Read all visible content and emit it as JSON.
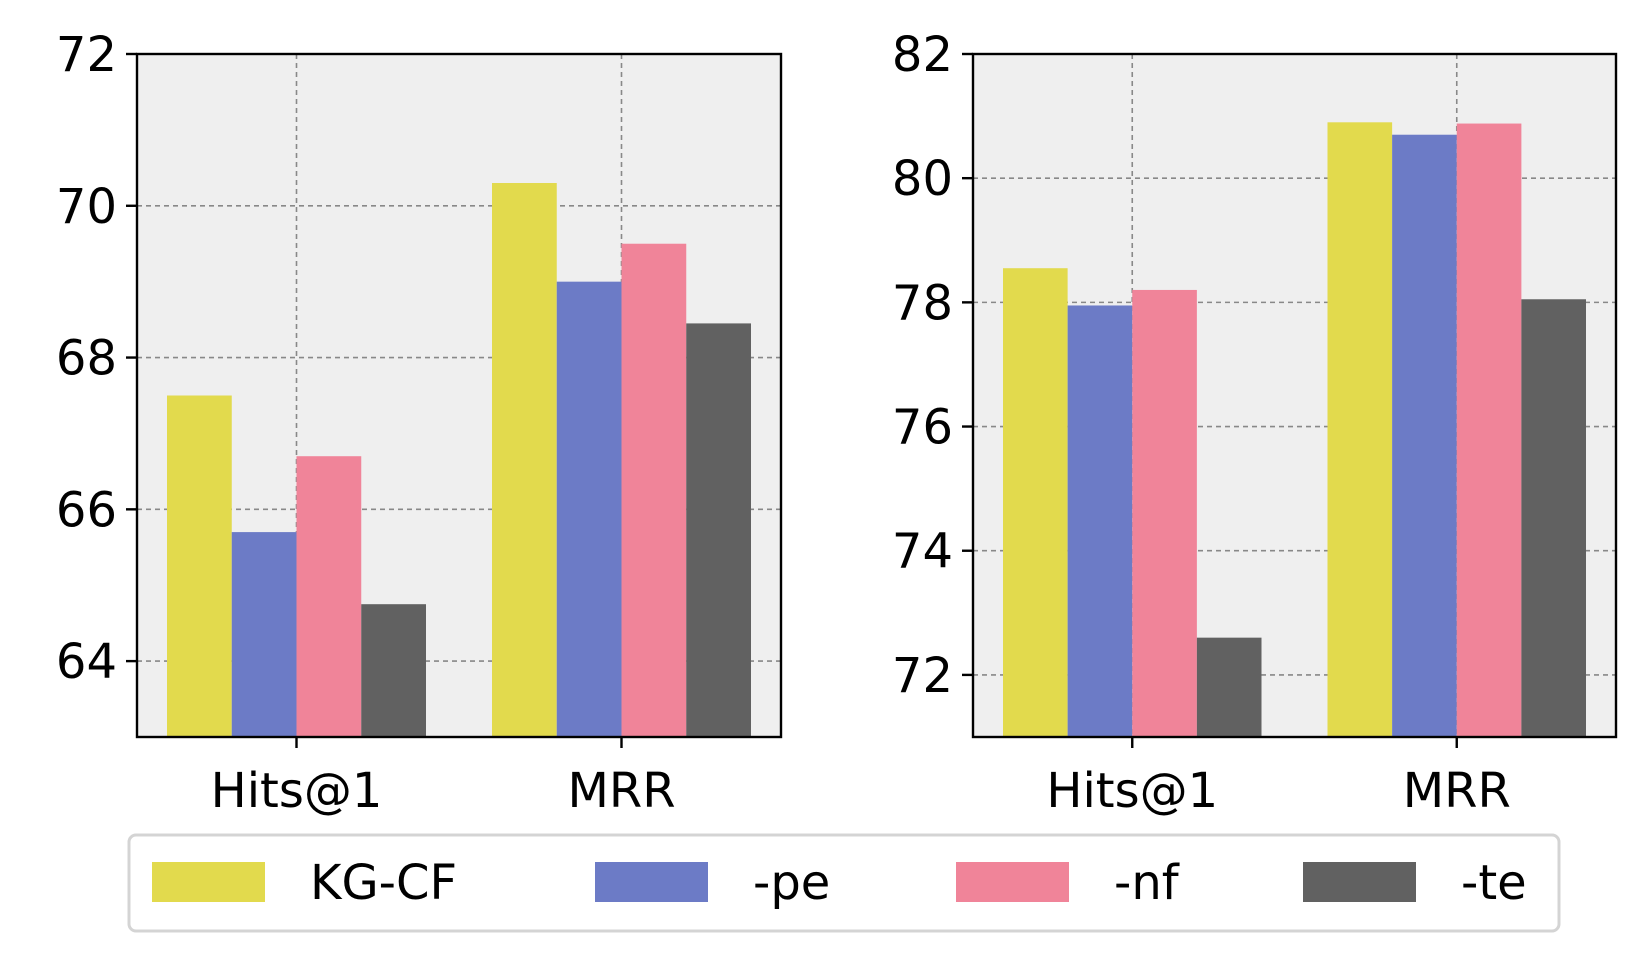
{
  "chart_data": [
    {
      "type": "bar",
      "categories": [
        "Hits@1",
        "MRR"
      ],
      "series": [
        {
          "name": "KG-CF",
          "values": [
            67.5,
            70.3
          ]
        },
        {
          "name": "-pe",
          "values": [
            65.7,
            69.0
          ]
        },
        {
          "name": "-nf",
          "values": [
            66.7,
            69.5
          ]
        },
        {
          "name": "-te",
          "values": [
            64.75,
            68.45
          ]
        }
      ],
      "ylim": [
        63,
        72
      ],
      "yticks": [
        64,
        66,
        68,
        70,
        72
      ],
      "grid": true
    },
    {
      "type": "bar",
      "categories": [
        "Hits@1",
        "MRR"
      ],
      "series": [
        {
          "name": "KG-CF",
          "values": [
            78.55,
            80.9
          ]
        },
        {
          "name": "-pe",
          "values": [
            77.95,
            80.7
          ]
        },
        {
          "name": "-nf",
          "values": [
            78.2,
            80.88
          ]
        },
        {
          "name": "-te",
          "values": [
            72.6,
            78.05
          ]
        }
      ],
      "ylim": [
        71,
        82
      ],
      "yticks": [
        72,
        74,
        76,
        78,
        80,
        82
      ],
      "grid": true
    }
  ],
  "colors": {
    "KG-CF": "#e2da4d",
    "-pe": "#6c7bc6",
    "-nf": "#f08499",
    "-te": "#616161",
    "plot_background": "#efefef",
    "grid": "#888888"
  },
  "legend": {
    "position": "bottom-center",
    "entries": [
      "KG-CF",
      "-pe",
      "-nf",
      "-te"
    ]
  }
}
